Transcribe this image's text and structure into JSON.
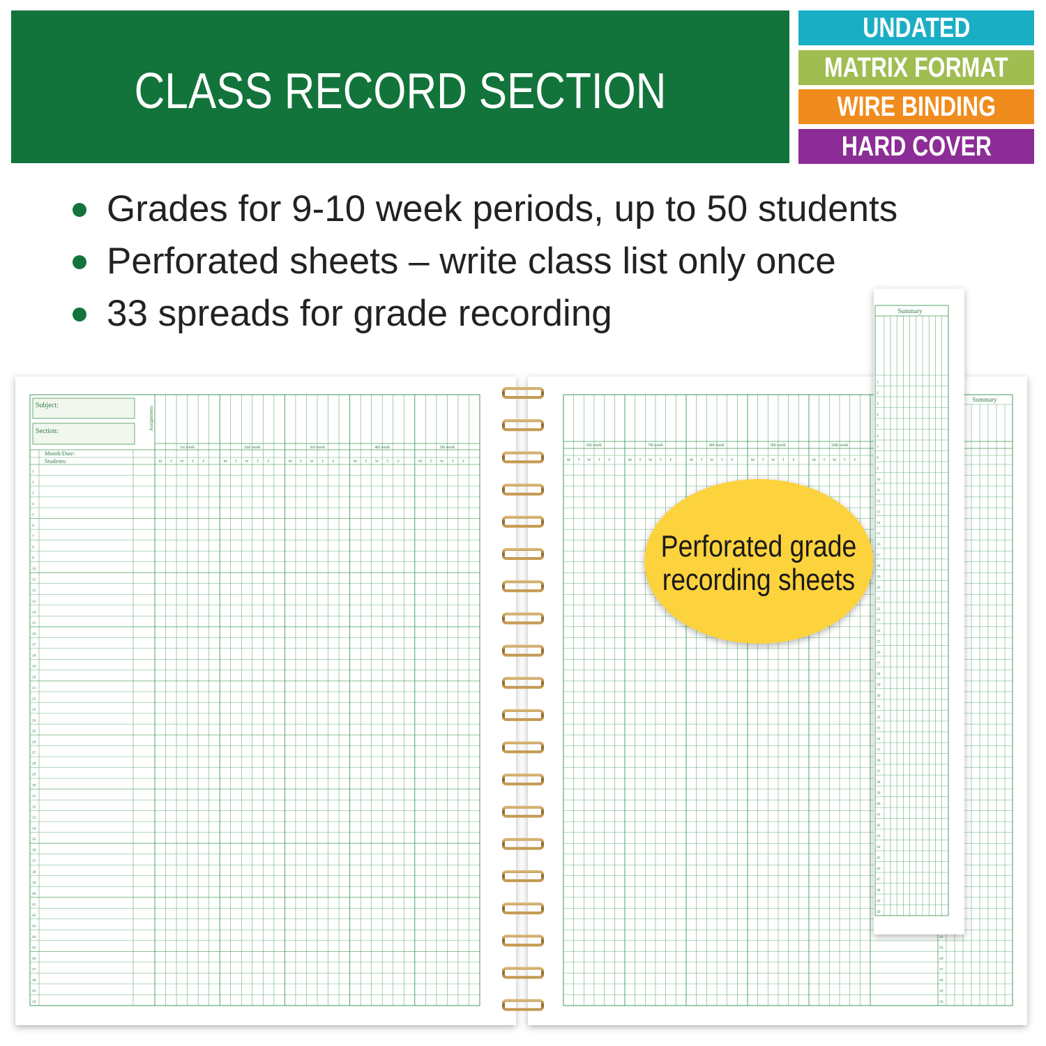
{
  "banner": {
    "title": "CLASS RECORD SECTION",
    "color": "#12743a"
  },
  "badges": [
    {
      "label": "UNDATED",
      "color": "#1aaec4"
    },
    {
      "label": "MATRIX FORMAT",
      "color": "#a0bd52"
    },
    {
      "label": "WIRE BINDING",
      "color": "#f08c1e"
    },
    {
      "label": "HARD COVER",
      "color": "#8c2c96"
    }
  ],
  "bullets": [
    "Grades for 9-10 week periods, up to 50 students",
    "Perforated sheets – write class list only once",
    "33 spreads for grade recording"
  ],
  "left_page": {
    "subject_label": "Subject:",
    "section_label": "Section:",
    "assignments_label": "Assignments",
    "month_date_label": "Month/Date:",
    "students_label": "Students:",
    "weeks": [
      "1st week",
      "2nd week",
      "3rd week",
      "4th week",
      "5th week"
    ]
  },
  "right_page": {
    "weeks": [
      "6th week",
      "7th week",
      "8th week",
      "9th week",
      "10th week"
    ],
    "summary_label": "Summary"
  },
  "strip": {
    "summary_label": "Summary"
  },
  "days": [
    "M",
    "T",
    "W",
    "T",
    "F"
  ],
  "student_numbers": [
    1,
    2,
    3,
    4,
    5,
    6,
    7,
    8,
    9,
    10,
    11,
    12,
    13,
    14,
    15,
    16,
    17,
    18,
    19,
    20,
    21,
    22,
    23,
    24,
    25,
    26,
    27,
    28,
    29,
    30,
    31,
    32,
    33,
    34,
    35,
    36,
    37,
    38,
    39,
    40,
    41,
    42,
    43,
    44,
    45,
    46,
    47,
    48,
    49,
    50
  ],
  "callout": {
    "line1": "Perforated grade",
    "line2": "recording sheets",
    "color": "#fcd23c"
  },
  "grid_color": "#3f9a55"
}
